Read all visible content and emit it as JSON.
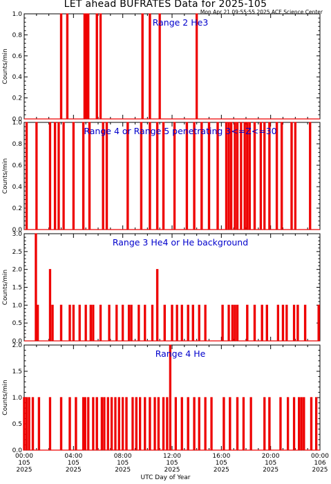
{
  "title": "LET ahead BUFRATES Data for 2025-105",
  "timestamp": "Mon Apr 21 09:55:55 2025 ACE Science Center",
  "xlabel": "UTC Day of Year",
  "colors": {
    "data": "#ee0000",
    "panel_title": "#0000cc",
    "axes": "#000000"
  },
  "x_ticks": [
    {
      "hours": 0,
      "time": "00:00",
      "day": "105",
      "year": "2025"
    },
    {
      "hours": 4,
      "time": "04:00",
      "day": "105",
      "year": "2025"
    },
    {
      "hours": 8,
      "time": "08:00",
      "day": "105",
      "year": "2025"
    },
    {
      "hours": 12,
      "time": "12:00",
      "day": "105",
      "year": "2025"
    },
    {
      "hours": 16,
      "time": "16:00",
      "day": "105",
      "year": "2025"
    },
    {
      "hours": 20,
      "time": "20:00",
      "day": "105",
      "year": "2025"
    },
    {
      "hours": 24,
      "time": "00:00",
      "day": "106",
      "year": "2025"
    }
  ],
  "chart_data": [
    {
      "type": "line",
      "title": "Range 2 He3",
      "ylabel": "Counts/min",
      "xlim": [
        0,
        24
      ],
      "ylim": [
        0,
        1
      ],
      "y_ticks": [
        "0.0",
        "0.2",
        "0.4",
        "0.6",
        "0.8",
        "1.0"
      ],
      "grid": false,
      "spikes": [
        [
          3.0,
          1
        ],
        [
          3.5,
          1
        ],
        [
          4.9,
          1
        ],
        [
          5.05,
          1
        ],
        [
          5.2,
          1
        ],
        [
          5.9,
          1
        ],
        [
          6.2,
          1
        ],
        [
          9.6,
          1
        ],
        [
          10.2,
          1
        ],
        [
          11.0,
          1
        ],
        [
          14.0,
          1
        ]
      ]
    },
    {
      "type": "line",
      "title": "Range 4 or Range 5 penetrating 3<=Z<=30",
      "ylabel": "Counts/min",
      "xlim": [
        0,
        24
      ],
      "ylim": [
        0,
        1
      ],
      "y_ticks": [
        "0.0",
        "0.2",
        "0.4",
        "0.6",
        "0.8",
        "1.0"
      ],
      "grid": false,
      "spikes": [
        [
          0.2,
          1
        ],
        [
          1.0,
          1
        ],
        [
          2.1,
          1
        ],
        [
          2.5,
          1
        ],
        [
          2.8,
          1
        ],
        [
          3.2,
          1
        ],
        [
          4.0,
          1
        ],
        [
          4.8,
          1
        ],
        [
          5.3,
          1
        ],
        [
          6.4,
          1
        ],
        [
          6.7,
          1
        ],
        [
          8.4,
          1
        ],
        [
          9.5,
          1
        ],
        [
          10.2,
          1
        ],
        [
          10.8,
          1
        ],
        [
          11.3,
          1
        ],
        [
          12.2,
          1
        ],
        [
          13.2,
          1
        ],
        [
          13.8,
          1
        ],
        [
          14.4,
          1
        ],
        [
          15.0,
          1
        ],
        [
          15.7,
          1
        ],
        [
          16.4,
          1
        ],
        [
          16.6,
          1
        ],
        [
          16.8,
          1
        ],
        [
          17.1,
          1
        ],
        [
          17.3,
          1
        ],
        [
          17.6,
          1
        ],
        [
          17.9,
          1
        ],
        [
          18.1,
          1
        ],
        [
          18.3,
          1
        ],
        [
          18.7,
          1
        ],
        [
          19.2,
          1
        ],
        [
          19.5,
          1
        ],
        [
          19.9,
          1
        ],
        [
          20.5,
          1
        ],
        [
          20.9,
          1
        ],
        [
          21.7,
          1
        ],
        [
          22.0,
          1
        ],
        [
          23.2,
          1
        ]
      ]
    },
    {
      "type": "line",
      "title": "Range 3 He4 or He background",
      "ylabel": "Counts/min",
      "xlim": [
        0,
        24
      ],
      "ylim": [
        0,
        3
      ],
      "y_ticks": [
        "0.0",
        "0.5",
        "1.0",
        "1.5",
        "2.0",
        "2.5",
        "3.0"
      ],
      "grid": false,
      "spikes": [
        [
          0.95,
          3
        ],
        [
          1.1,
          1
        ],
        [
          2.1,
          2
        ],
        [
          2.3,
          1
        ],
        [
          3.0,
          1
        ],
        [
          3.7,
          1
        ],
        [
          4.0,
          1
        ],
        [
          4.5,
          1
        ],
        [
          5.0,
          1
        ],
        [
          5.4,
          1
        ],
        [
          5.6,
          1
        ],
        [
          6.2,
          1
        ],
        [
          6.9,
          1
        ],
        [
          7.5,
          1
        ],
        [
          8.0,
          1
        ],
        [
          8.5,
          1
        ],
        [
          8.7,
          1
        ],
        [
          9.3,
          1
        ],
        [
          9.8,
          1
        ],
        [
          10.4,
          1
        ],
        [
          10.8,
          2
        ],
        [
          11.4,
          1
        ],
        [
          12.0,
          1
        ],
        [
          12.4,
          1
        ],
        [
          12.8,
          1
        ],
        [
          13.3,
          1
        ],
        [
          13.7,
          1
        ],
        [
          14.2,
          1
        ],
        [
          14.7,
          1
        ],
        [
          16.1,
          1
        ],
        [
          16.6,
          1
        ],
        [
          16.9,
          1
        ],
        [
          17.1,
          1
        ],
        [
          17.3,
          1
        ],
        [
          18.1,
          1
        ],
        [
          18.7,
          1
        ],
        [
          19.3,
          1
        ],
        [
          19.7,
          1
        ],
        [
          20.6,
          1
        ],
        [
          21.0,
          1
        ],
        [
          21.3,
          1
        ],
        [
          21.9,
          1
        ],
        [
          22.2,
          1
        ],
        [
          22.8,
          1
        ],
        [
          23.9,
          1
        ]
      ]
    },
    {
      "type": "line",
      "title": "Range 4 He",
      "ylabel": "Counts/min",
      "xlim": [
        0,
        24
      ],
      "ylim": [
        0,
        2
      ],
      "y_ticks": [
        "0.0",
        "0.5",
        "1.0",
        "1.5",
        "2.0"
      ],
      "grid": false,
      "spikes": [
        [
          0.0,
          1
        ],
        [
          0.2,
          1
        ],
        [
          0.4,
          1
        ],
        [
          0.7,
          1
        ],
        [
          1.2,
          1
        ],
        [
          2.1,
          1
        ],
        [
          3.0,
          1
        ],
        [
          3.7,
          1
        ],
        [
          4.2,
          1
        ],
        [
          4.8,
          1
        ],
        [
          4.95,
          1
        ],
        [
          5.2,
          1
        ],
        [
          5.6,
          1
        ],
        [
          5.9,
          1
        ],
        [
          6.3,
          1
        ],
        [
          6.5,
          1
        ],
        [
          6.8,
          1
        ],
        [
          7.1,
          1
        ],
        [
          7.4,
          1
        ],
        [
          7.7,
          1
        ],
        [
          8.0,
          1
        ],
        [
          8.3,
          1
        ],
        [
          8.8,
          1
        ],
        [
          9.1,
          1
        ],
        [
          9.4,
          1
        ],
        [
          9.8,
          1
        ],
        [
          10.2,
          1
        ],
        [
          10.6,
          1
        ],
        [
          10.9,
          1
        ],
        [
          11.3,
          1
        ],
        [
          11.6,
          1
        ],
        [
          11.85,
          2
        ],
        [
          12.3,
          1
        ],
        [
          12.8,
          1
        ],
        [
          13.3,
          1
        ],
        [
          13.8,
          1
        ],
        [
          14.2,
          1
        ],
        [
          14.7,
          1
        ],
        [
          15.2,
          1
        ],
        [
          16.2,
          1
        ],
        [
          16.7,
          1
        ],
        [
          17.3,
          1
        ],
        [
          17.8,
          1
        ],
        [
          18.4,
          1
        ],
        [
          19.5,
          1
        ],
        [
          19.9,
          1
        ],
        [
          20.8,
          1
        ],
        [
          21.4,
          1
        ],
        [
          21.9,
          1
        ],
        [
          22.3,
          1
        ],
        [
          22.5,
          1
        ],
        [
          22.7,
          1
        ],
        [
          23.3,
          1
        ],
        [
          23.7,
          1
        ]
      ]
    }
  ]
}
